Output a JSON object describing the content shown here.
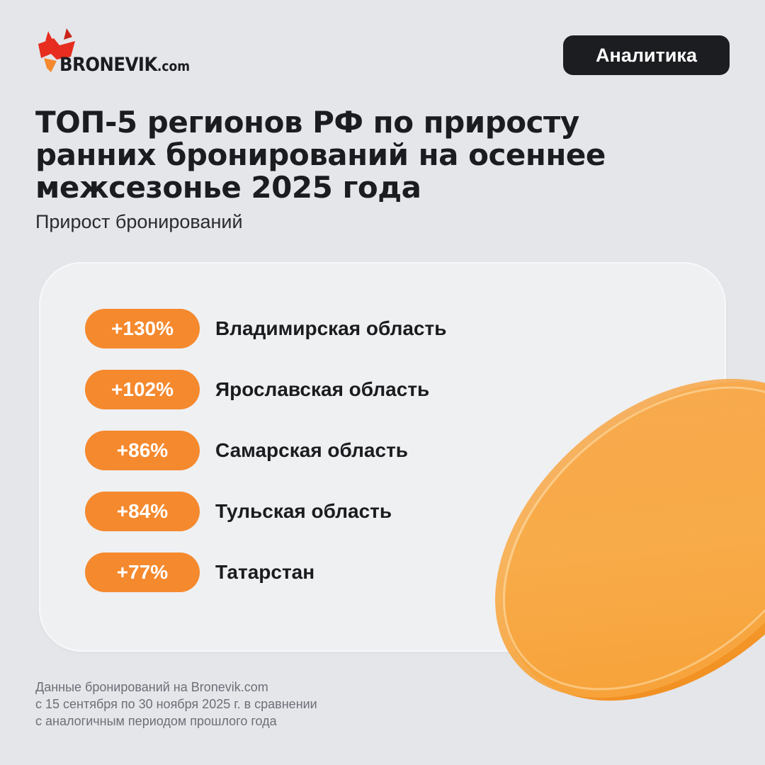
{
  "brand": {
    "name": "BRONEVIK",
    "domain": ".com",
    "accent_color": "#f5892e",
    "logo_red": "#e62d1f",
    "logo_orange": "#f5892e"
  },
  "tag": {
    "label": "Аналитика"
  },
  "title": {
    "lines": [
      "ТОП-5 регионов РФ по приросту",
      "ранних бронирований на осеннее",
      "межсезонье 2025 года"
    ]
  },
  "subtitle": "Прирост бронирований",
  "regions": [
    {
      "growth": "+130%",
      "name": "Владимирская область"
    },
    {
      "growth": "+102%",
      "name": "Ярославская область"
    },
    {
      "growth": "+86%",
      "name": "Самарская область"
    },
    {
      "growth": "+84%",
      "name": "Тульская область"
    },
    {
      "growth": "+77%",
      "name": "Татарстан"
    }
  ],
  "footnote": {
    "lines": [
      "Данные бронирований на Bronevik.com",
      "с 15 сентября по 30 ноября 2025 г. в сравнении",
      "с аналогичным периодом прошлого года"
    ]
  }
}
